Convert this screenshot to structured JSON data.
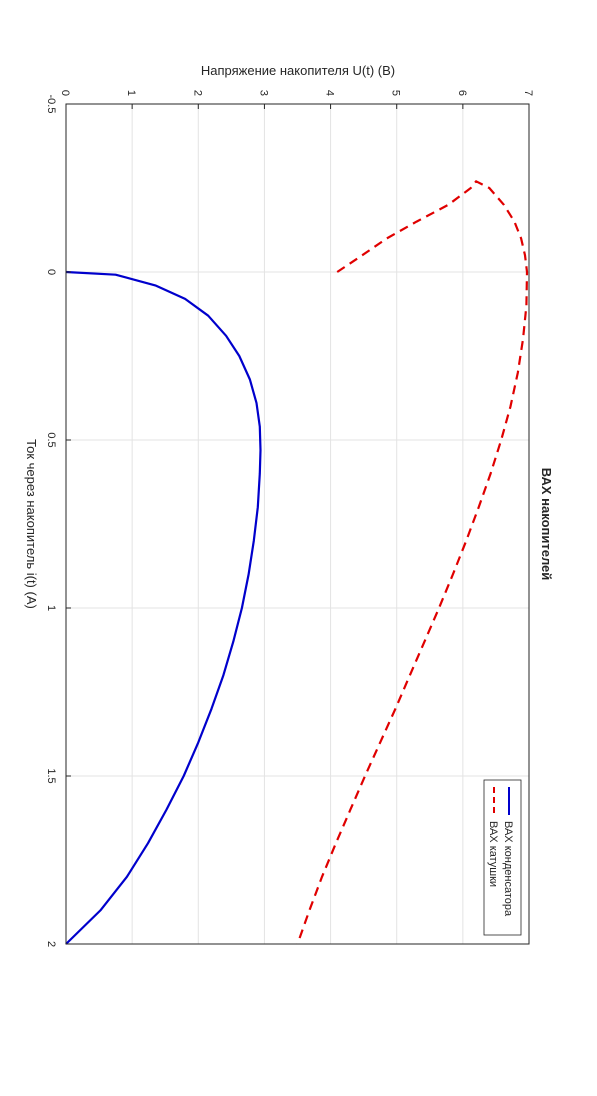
{
  "chart_data": {
    "type": "line",
    "title": "ВАХ накопителей",
    "xlabel": "Ток через накопитель i(t) (A)",
    "ylabel": "Напряжение накопителя U(t) (B)",
    "xlim": [
      -0.5,
      2
    ],
    "ylim": [
      0,
      7
    ],
    "xticks": [
      "-0.5",
      "0",
      "0.5",
      "1",
      "1.5",
      "2"
    ],
    "yticks": [
      "0",
      "1",
      "2",
      "3",
      "4",
      "5",
      "6",
      "7"
    ],
    "grid": true,
    "legend_position": "top-right",
    "orientation": "rotated 90° clockwise",
    "series": [
      {
        "name": "ВАХ конденсатора",
        "color": "#0000CC",
        "style": "solid",
        "x": [
          0,
          0.008,
          0.04,
          0.08,
          0.13,
          0.19,
          0.25,
          0.32,
          0.39,
          0.46,
          0.53,
          0.6,
          0.7,
          0.8,
          0.9,
          1.0,
          1.1,
          1.2,
          1.3,
          1.4,
          1.5,
          1.6,
          1.7,
          1.8,
          1.9,
          2.0
        ],
        "y": [
          0,
          0.75,
          1.35,
          1.8,
          2.15,
          2.42,
          2.62,
          2.78,
          2.88,
          2.93,
          2.94,
          2.93,
          2.9,
          2.84,
          2.76,
          2.66,
          2.53,
          2.38,
          2.2,
          2.0,
          1.78,
          1.52,
          1.24,
          0.92,
          0.52,
          0
        ]
      },
      {
        "name": "ВАХ катушки",
        "color": "#E00000",
        "style": "dashed",
        "x": [
          0,
          -0.05,
          -0.1,
          -0.15,
          -0.2,
          -0.25,
          -0.27,
          -0.25,
          -0.2,
          -0.15,
          -0.1,
          -0.05,
          0,
          0.1,
          0.2,
          0.3,
          0.4,
          0.5,
          0.6,
          0.7,
          0.8,
          0.9,
          1.0,
          1.1,
          1.2,
          1.3,
          1.4,
          1.5,
          1.6,
          1.7,
          1.8,
          1.9,
          2.0
        ],
        "y": [
          4.1,
          4.48,
          4.85,
          5.3,
          5.78,
          6.12,
          6.2,
          6.4,
          6.62,
          6.78,
          6.88,
          6.94,
          6.97,
          6.96,
          6.91,
          6.83,
          6.72,
          6.58,
          6.42,
          6.24,
          6.05,
          5.85,
          5.64,
          5.42,
          5.2,
          4.98,
          4.75,
          4.52,
          4.3,
          4.08,
          3.87,
          3.68,
          3.5
        ]
      }
    ]
  }
}
